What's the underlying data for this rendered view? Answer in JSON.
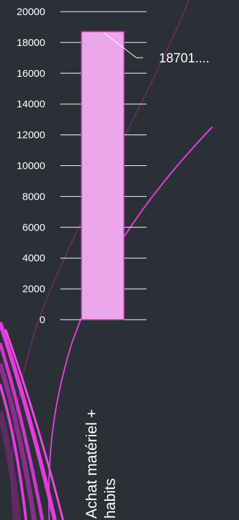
{
  "chart_data": {
    "type": "bar",
    "categories": [
      "Achat matériel + habits"
    ],
    "values": [
      18701
    ],
    "data_labels": [
      "18701...."
    ],
    "ylim": [
      0,
      20000
    ],
    "yticks": [
      0,
      2000,
      4000,
      6000,
      8000,
      10000,
      12000,
      14000,
      16000,
      18000,
      20000
    ],
    "category_label_lines": [
      "Achat matériel +",
      "habits"
    ],
    "grid": true,
    "legend": "none"
  },
  "colors": {
    "background": "#2b3036",
    "bar_fill": "#eca6ea",
    "bar_stroke": "#d637d0",
    "gridline": "#ffffff",
    "text": "#ffffff",
    "decor_magenta": "#e83ae0",
    "decor_dark_magenta": "#7a2a79"
  }
}
